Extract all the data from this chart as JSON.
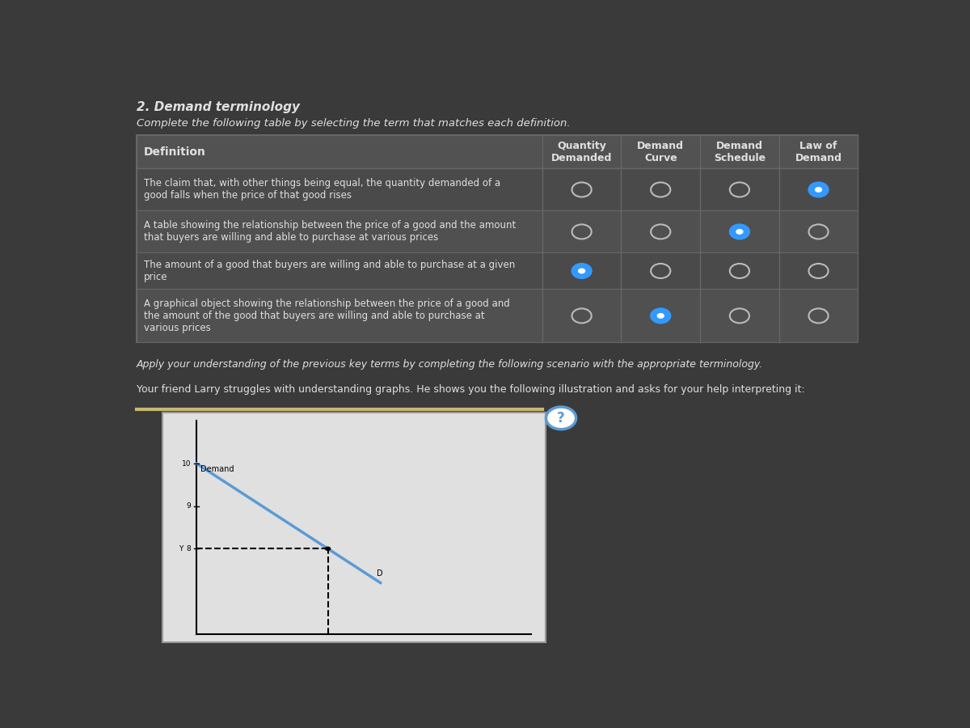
{
  "title": "2. Demand terminology",
  "subtitle": "Complete the following table by selecting the term that matches each definition.",
  "bg_color": "#3a3a3a",
  "table_bg": "#4a4a4a",
  "header_bg": "#525252",
  "text_color": "#e0e0e0",
  "border_color": "#666666",
  "col_headers": [
    "Quantity\nDemanded",
    "Demand\nCurve",
    "Demand\nSchedule",
    "Law of\nDemand"
  ],
  "definitions": [
    "The claim that, with other things being equal, the quantity demanded of a\ngood falls when the price of that good rises",
    "A table showing the relationship between the price of a good and the amount\nthat buyers are willing and able to purchase at various prices",
    "The amount of a good that buyers are willing and able to purchase at a given\nprice",
    "A graphical object showing the relationship between the price of a good and\nthe amount of the good that buyers are willing and able to purchase at\nvarious prices"
  ],
  "radio_selected": [
    3,
    2,
    0,
    1
  ],
  "scenario_text1": "Apply your understanding of the previous key terms by completing the following scenario with the appropriate terminology.",
  "scenario_text2": "Your friend Larry struggles with understanding graphs. He shows you the following illustration and asks for your help interpreting it:",
  "demand_color": "#5b9bd5",
  "separator_color": "#c8b870",
  "radio_selected_color": "#3399ff",
  "radio_unselected_color": "#bbbbbb"
}
